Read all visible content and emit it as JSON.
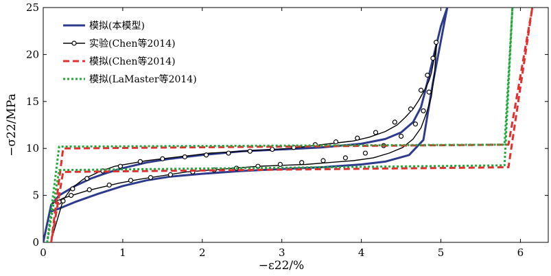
{
  "chart_data": {
    "type": "line",
    "xlabel": "−ε22/%",
    "ylabel": "−σ22/MPa",
    "xlim": [
      0,
      6.35
    ],
    "ylim": [
      0,
      25
    ],
    "xticks": [
      "0",
      "1",
      "2",
      "3",
      "4",
      "5",
      "6"
    ],
    "yticks": [
      "0",
      "5",
      "10",
      "15",
      "20",
      "25"
    ],
    "grid": false,
    "legend_position": "top-left",
    "series": [
      {
        "name": "模拟(本模型)",
        "color": "#2e3a8c",
        "style": "solid",
        "markers": false,
        "x": [
          0.0,
          0.05,
          0.1,
          0.2,
          0.4,
          0.6,
          0.8,
          1.0,
          1.3,
          1.6,
          2.0,
          2.5,
          3.0,
          3.5,
          4.0,
          4.3,
          4.5,
          4.65,
          4.75,
          4.8,
          4.9,
          5.0,
          5.08,
          4.9,
          4.78,
          4.6,
          4.3,
          4.0,
          3.5,
          3.0,
          2.5,
          2.0,
          1.6,
          1.3,
          1.0,
          0.7,
          0.4,
          0.2,
          0.1,
          0.08
        ],
        "y": [
          0.0,
          2.0,
          4.0,
          5.0,
          6.0,
          6.8,
          7.4,
          7.9,
          8.5,
          8.9,
          9.3,
          9.7,
          9.9,
          10.1,
          10.5,
          11.0,
          11.7,
          12.8,
          14.4,
          16.0,
          19.5,
          23.0,
          25.0,
          17.0,
          10.9,
          9.3,
          8.6,
          8.3,
          8.0,
          7.8,
          7.6,
          7.3,
          7.0,
          6.6,
          6.0,
          5.2,
          4.3,
          3.6,
          3.3,
          3.2
        ]
      },
      {
        "name": "实验(Chen等2014)",
        "color": "#000000",
        "style": "solid",
        "markers": true,
        "x": [
          0.1,
          0.25,
          0.35,
          0.5,
          0.7,
          0.9,
          1.1,
          1.3,
          1.5,
          1.7,
          1.9,
          2.1,
          2.3,
          2.5,
          2.7,
          2.9,
          3.1,
          3.3,
          3.5,
          3.7,
          3.9,
          4.1,
          4.3,
          4.45,
          4.55,
          4.65,
          4.72,
          4.8,
          4.85,
          4.88,
          4.92,
          4.95,
          4.92,
          4.88,
          4.82,
          4.75,
          4.65,
          4.52,
          4.35,
          4.15,
          3.9,
          3.6,
          3.3,
          3.0,
          2.7,
          2.4,
          2.1,
          1.8,
          1.5,
          1.2,
          0.95,
          0.75,
          0.55,
          0.4,
          0.25,
          0.15,
          0.1
        ],
        "y": [
          0.2,
          4.5,
          5.7,
          6.7,
          7.5,
          8.1,
          8.4,
          8.7,
          8.9,
          9.1,
          9.3,
          9.5,
          9.6,
          9.7,
          9.8,
          9.9,
          10.0,
          10.2,
          10.4,
          10.6,
          10.8,
          11.2,
          11.8,
          12.5,
          13.3,
          14.2,
          15.1,
          16.3,
          17.2,
          18.0,
          19.8,
          21.5,
          18.0,
          15.5,
          13.8,
          12.2,
          11.0,
          10.1,
          9.5,
          9.0,
          8.7,
          8.5,
          8.3,
          8.2,
          8.1,
          7.9,
          7.7,
          7.5,
          7.1,
          6.7,
          6.3,
          5.9,
          5.5,
          5.1,
          4.7,
          4.3,
          4.0
        ],
        "marker_x": [
          0.25,
          0.37,
          0.55,
          0.75,
          0.97,
          1.22,
          1.5,
          1.78,
          2.05,
          2.33,
          2.6,
          2.88,
          3.15,
          3.42,
          3.68,
          3.95,
          4.18,
          4.42,
          4.62,
          4.75,
          4.83,
          4.9,
          4.94,
          0.2,
          0.35,
          0.58,
          0.83,
          1.1,
          1.35,
          1.6,
          1.88,
          2.15,
          2.43,
          2.7,
          2.98,
          3.25,
          3.52,
          3.8,
          4.05,
          4.28,
          4.5,
          4.68,
          4.78,
          4.85
        ],
        "marker_y": [
          4.4,
          5.7,
          6.8,
          7.6,
          8.1,
          8.6,
          8.9,
          9.1,
          9.3,
          9.5,
          9.7,
          9.9,
          10.1,
          10.4,
          10.7,
          11.1,
          11.7,
          12.8,
          14.2,
          16.2,
          17.8,
          19.6,
          21.3,
          4.3,
          5.0,
          5.6,
          6.1,
          6.6,
          6.9,
          7.2,
          7.5,
          7.7,
          7.9,
          8.1,
          8.3,
          8.5,
          8.7,
          9.0,
          9.5,
          10.3,
          11.3,
          12.6,
          14.0,
          16.0
        ]
      },
      {
        "name": "模拟(Chen等2014)",
        "color": "#e03030",
        "style": "dashed",
        "markers": false,
        "x": [
          0.1,
          0.25,
          5.85,
          6.15,
          5.85,
          0.25,
          0.1
        ],
        "y": [
          0.0,
          10.0,
          10.4,
          25.0,
          8.0,
          7.5,
          0.0
        ]
      },
      {
        "name": "模拟(LaMaster等2014)",
        "color": "#22a83a",
        "style": "dotted",
        "markers": false,
        "x": [
          0.05,
          0.2,
          5.8,
          5.9,
          5.8,
          0.2,
          0.05
        ],
        "y": [
          0.0,
          10.2,
          10.4,
          25.0,
          8.2,
          7.7,
          0.0
        ]
      }
    ]
  }
}
